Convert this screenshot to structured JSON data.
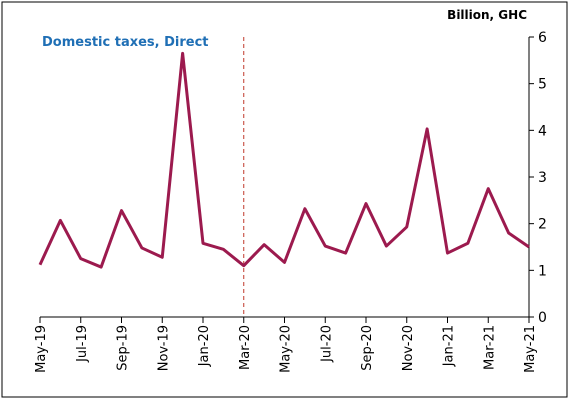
{
  "chart_data": {
    "type": "line",
    "title": "Domestic taxes, Direct",
    "y_axis_label": "Billion, GHC",
    "categories": [
      "May-19",
      null,
      "Jul-19",
      null,
      "Sep-19",
      null,
      "Nov-19",
      null,
      "Jan-20",
      null,
      "Mar-20",
      null,
      "May-20",
      null,
      "Jul-20",
      null,
      "Sep-20",
      null,
      "Nov-20",
      null,
      "Jan-21",
      null,
      "Mar-21",
      null,
      "May-21"
    ],
    "series": [
      {
        "name": "Domestic taxes, Direct",
        "color": "#9c1a4e",
        "values": [
          1.12,
          2.07,
          1.25,
          1.07,
          2.28,
          1.48,
          1.28,
          5.65,
          1.58,
          1.45,
          1.1,
          1.55,
          1.17,
          2.32,
          1.52,
          1.37,
          2.43,
          1.52,
          1.93,
          4.03,
          1.37,
          1.58,
          2.75,
          1.8,
          1.5
        ]
      }
    ],
    "ylim": [
      0,
      6
    ],
    "yticks": [
      0,
      1,
      2,
      3,
      4,
      5,
      6
    ],
    "vline": "Mar-20",
    "vline_color": "#c0392b",
    "title_color": "#1f6fb5",
    "grid": false
  }
}
